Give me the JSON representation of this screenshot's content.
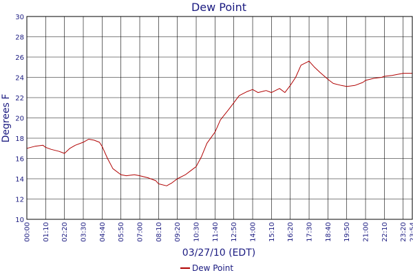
{
  "chart_data": {
    "type": "line",
    "title": "Dew Point",
    "xlabel": "03/27/10 (EDT)",
    "ylabel": "Degrees F",
    "ylim": [
      10,
      30
    ],
    "yticks": [
      10,
      12,
      14,
      16,
      18,
      20,
      22,
      24,
      26,
      28,
      30
    ],
    "xticks": [
      "00:00",
      "01:10",
      "02:20",
      "03:30",
      "04:40",
      "05:50",
      "07:00",
      "08:10",
      "09:20",
      "10:30",
      "11:40",
      "12:50",
      "14:00",
      "15:10",
      "16:20",
      "17:30",
      "18:40",
      "19:50",
      "21:00",
      "22:10",
      "23:20",
      "23:54"
    ],
    "grid": true,
    "legend": "bottom-center",
    "series": [
      {
        "name": "Dew Point",
        "color": "#b00000",
        "x": [
          "00:00",
          "00:30",
          "01:00",
          "01:10",
          "01:30",
          "02:00",
          "02:20",
          "02:40",
          "03:00",
          "03:30",
          "03:50",
          "04:10",
          "04:30",
          "04:40",
          "05:00",
          "05:20",
          "05:50",
          "06:10",
          "06:40",
          "07:00",
          "07:30",
          "08:00",
          "08:10",
          "08:40",
          "09:00",
          "09:20",
          "09:50",
          "10:10",
          "10:30",
          "10:50",
          "11:10",
          "11:40",
          "12:00",
          "12:30",
          "12:50",
          "13:10",
          "13:40",
          "14:00",
          "14:20",
          "14:50",
          "15:10",
          "15:40",
          "16:00",
          "16:20",
          "16:40",
          "17:00",
          "17:30",
          "17:50",
          "18:10",
          "18:40",
          "19:00",
          "19:30",
          "19:50",
          "20:20",
          "20:50",
          "21:00",
          "21:30",
          "22:00",
          "22:10",
          "22:40",
          "23:00",
          "23:20",
          "23:54"
        ],
        "values": [
          17.0,
          17.2,
          17.3,
          17.1,
          16.9,
          16.7,
          16.5,
          17.0,
          17.3,
          17.6,
          17.9,
          17.8,
          17.6,
          17.2,
          16.0,
          15.0,
          14.4,
          14.3,
          14.4,
          14.3,
          14.1,
          13.8,
          13.5,
          13.3,
          13.6,
          14.0,
          14.4,
          14.8,
          15.2,
          16.2,
          17.5,
          18.6,
          19.8,
          20.8,
          21.5,
          22.2,
          22.6,
          22.8,
          22.5,
          22.7,
          22.5,
          22.9,
          22.5,
          23.2,
          24.0,
          25.2,
          25.6,
          25.0,
          24.5,
          23.8,
          23.4,
          23.2,
          23.1,
          23.2,
          23.5,
          23.7,
          23.9,
          24.0,
          24.1,
          24.2,
          24.3,
          24.4,
          24.4
        ]
      }
    ]
  }
}
